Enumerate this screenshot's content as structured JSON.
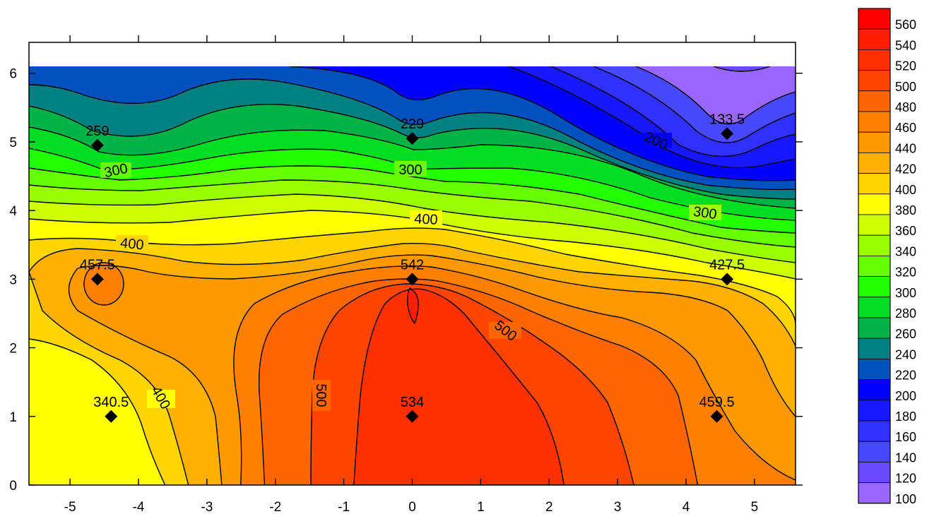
{
  "chart_data": {
    "type": "heatmap",
    "subtype": "filled contour",
    "title": "",
    "xlabel": "",
    "ylabel": "",
    "xlim": [
      -5.6,
      5.6
    ],
    "ylim": [
      0,
      6.1
    ],
    "x_ticks": [
      -5,
      -4,
      -3,
      -2,
      -1,
      0,
      1,
      2,
      3,
      4,
      5
    ],
    "y_ticks": [
      0,
      1,
      2,
      3,
      4,
      5,
      6
    ],
    "grid": false,
    "contour_interval": 20,
    "levels": [
      100,
      120,
      140,
      160,
      180,
      200,
      220,
      240,
      260,
      280,
      300,
      320,
      340,
      360,
      380,
      400,
      420,
      440,
      460,
      480,
      500,
      520,
      540,
      560
    ],
    "colorbar": {
      "placement": "right",
      "labels": [
        "560",
        "540",
        "520",
        "500",
        "480",
        "460",
        "440",
        "420",
        "400",
        "380",
        "360",
        "340",
        "320",
        "300",
        "280",
        "260",
        "240",
        "220",
        "200",
        "180",
        "160",
        "140",
        "120",
        "100"
      ],
      "colors": [
        "#ff0000",
        "#ff1e00",
        "#ff3000",
        "#ff4500",
        "#ff6600",
        "#ff7f00",
        "#ff9900",
        "#ffb000",
        "#ffd500",
        "#ffff00",
        "#ccff00",
        "#99ff00",
        "#66ff00",
        "#22ff00",
        "#00dd22",
        "#00b347",
        "#008080",
        "#0050c0",
        "#0000ff",
        "#1818ff",
        "#3030ff",
        "#4848ff",
        "#6a48ff",
        "#9966ff"
      ]
    },
    "points": [
      {
        "x": -4.6,
        "y": 4.95,
        "label": "259"
      },
      {
        "x": 0.0,
        "y": 5.05,
        "label": "229"
      },
      {
        "x": 4.6,
        "y": 5.12,
        "label": "133.5"
      },
      {
        "x": -4.6,
        "y": 3.0,
        "label": "457.5"
      },
      {
        "x": 0.0,
        "y": 3.0,
        "label": "542"
      },
      {
        "x": 4.6,
        "y": 3.0,
        "label": "427.5"
      },
      {
        "x": -4.4,
        "y": 1.0,
        "label": "340.5"
      },
      {
        "x": 0.0,
        "y": 1.0,
        "label": "534"
      },
      {
        "x": 4.45,
        "y": 1.0,
        "label": "459.5"
      }
    ],
    "contour_labels": [
      "300",
      "300",
      "300",
      "200",
      "400",
      "400",
      "400",
      "500",
      "500"
    ]
  }
}
